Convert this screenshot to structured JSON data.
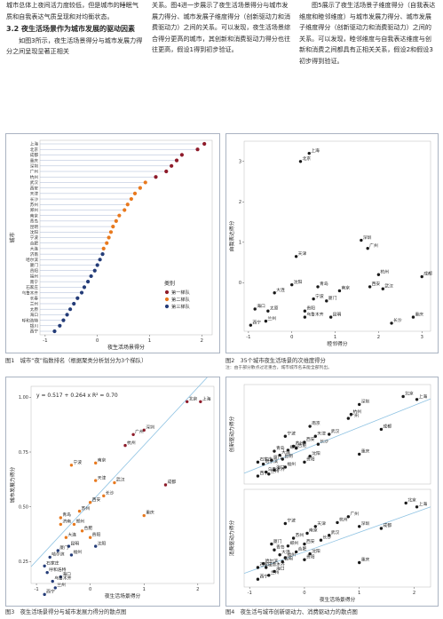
{
  "text": {
    "col1_p1": "城市总体上夜间活力度较低，但是城市的睡眠气质和自我表达气质呈现和对均衡状态。",
    "col1_heading": "3.2 夜生活场景作为城市发展的驱动因素",
    "col1_p2": "如图3所示，夜生活场景得分与城市发展力得分之间呈现显著正相关",
    "col2_p1": "关系。图4进一步展示了夜生活场景得分与城市发展力得分、城市发展子维度得分（创新驱动力和消费驱动力）之间的关系。可以发现，夜生活场景综合得分更高的城市，其创新和消费驱动力得分也往往更高，假设1得到初步验证。",
    "col3_p1": "图5展示了夜生活场景子维度得分（自我表达维度和睦邻维度）与城市发展力得分、城市发展子维度得分（创新驱动力和消费驱动力）之间的关系。可以发现，睦邻维度与自我表达维度与创新和消费之间都具有正相关关系，假设2和假设3初步得到验证。"
  },
  "figures": {
    "fig1": {
      "caption": "图1　城市“夜”指数排名（根据聚类分析划分为3个梯队）",
      "legend_title": "类别",
      "legend_items": [
        "第一梯队",
        "第二梯队",
        "第三梯队"
      ],
      "colors": [
        "#8e1b2a",
        "#e8791e",
        "#243c78"
      ],
      "chart_data": {
        "type": "scatter",
        "xlabel": "夜生活场景得分",
        "ylabel": "城市",
        "xticks": [
          "-1",
          "0",
          "1",
          "2"
        ],
        "xlim": [
          -1.1,
          2.2
        ],
        "cities": [
          "上海",
          "北京",
          "成都",
          "重庆",
          "深圳",
          "广州",
          "杭州",
          "武汉",
          "西安",
          "天津",
          "长沙",
          "苏州",
          "郑州",
          "南京",
          "青岛",
          "昆明",
          "沈阳",
          "宁波",
          "合肥",
          "大连",
          "济南",
          "哈尔滨",
          "厦门",
          "贵阳",
          "福州",
          "南宁",
          "石家庄",
          "乌鲁木齐",
          "长春",
          "兰州",
          "太原",
          "海口",
          "呼和浩特",
          "银川",
          "西宁"
        ],
        "scores": [
          2.05,
          1.92,
          1.62,
          1.52,
          1.42,
          1.32,
          1.12,
          0.92,
          0.82,
          0.72,
          0.65,
          0.58,
          0.52,
          0.42,
          0.36,
          0.3,
          0.26,
          0.22,
          0.18,
          0.12,
          0.1,
          0.05,
          0.0,
          -0.05,
          -0.12,
          -0.18,
          -0.25,
          -0.3,
          -0.38,
          -0.45,
          -0.52,
          -0.58,
          -0.65,
          -0.72,
          -0.82
        ],
        "tiers": [
          1,
          1,
          1,
          1,
          1,
          1,
          1,
          2,
          2,
          2,
          2,
          2,
          2,
          2,
          2,
          2,
          2,
          2,
          2,
          2,
          3,
          3,
          3,
          3,
          3,
          3,
          3,
          3,
          3,
          3,
          3,
          3,
          3,
          3,
          3
        ]
      }
    },
    "fig2": {
      "caption": "图2　35个城市夜生活场景的次维度得分",
      "note": "注：由于部分散点过近重合，城市城市名未能全部列出。",
      "chart_data": {
        "type": "scatter",
        "xlabel": "睦邻得分",
        "ylabel": "自我表达得分",
        "xticks": [
          "-1",
          "0",
          "1",
          "2",
          "3"
        ],
        "xlim": [
          -1.1,
          3.2
        ],
        "ylim": [
          -1.2,
          3.5
        ],
        "yticks": [
          "0",
          "1",
          "2",
          "3"
        ],
        "points": [
          {
            "label": "上海",
            "x": 0.4,
            "y": 3.2
          },
          {
            "label": "北京",
            "x": 0.2,
            "y": 3.0
          },
          {
            "label": "深圳",
            "x": 1.6,
            "y": 1.05
          },
          {
            "label": "广州",
            "x": 1.75,
            "y": 0.85
          },
          {
            "label": "天津",
            "x": 0.1,
            "y": 0.65
          },
          {
            "label": "成都",
            "x": 3.0,
            "y": 0.15
          },
          {
            "label": "杭州",
            "x": 2.0,
            "y": 0.2
          },
          {
            "label": "沈阳",
            "x": 0.0,
            "y": -0.05
          },
          {
            "label": "青岛",
            "x": 0.6,
            "y": -0.1
          },
          {
            "label": "南京",
            "x": 1.1,
            "y": -0.2
          },
          {
            "label": "西安",
            "x": 1.8,
            "y": -0.1
          },
          {
            "label": "武汉",
            "x": 2.1,
            "y": -0.15
          },
          {
            "label": "大连",
            "x": -0.4,
            "y": -0.25
          },
          {
            "label": "宁波",
            "x": 0.5,
            "y": -0.4
          },
          {
            "label": "厦门",
            "x": 0.8,
            "y": -0.45
          },
          {
            "label": "海口",
            "x": -0.85,
            "y": -0.65
          },
          {
            "label": "太原",
            "x": -0.55,
            "y": -0.7
          },
          {
            "label": "乌鲁木齐",
            "x": 0.3,
            "y": -0.85
          },
          {
            "label": "兰州",
            "x": -0.6,
            "y": -0.95
          },
          {
            "label": "西宁",
            "x": -0.95,
            "y": -1.05
          },
          {
            "label": "昆明",
            "x": 0.9,
            "y": -0.85
          },
          {
            "label": "贵阳",
            "x": 0.3,
            "y": -0.7
          },
          {
            "label": "长沙",
            "x": 2.3,
            "y": -1.0
          },
          {
            "label": "重庆",
            "x": 2.8,
            "y": -0.85
          }
        ]
      }
    },
    "fig3": {
      "caption": "图3　夜生活场景得分与城市发展力得分的散点图",
      "equation": "y = 0.517 + 0.264 x   R² = 0.70",
      "chart_data": {
        "type": "scatter",
        "xlabel": "夜生活场景得分",
        "ylabel": "城市发展力得分",
        "xticks": [
          "-1",
          "0",
          "1",
          "2"
        ],
        "yticks": [
          "0.25",
          "0.50",
          "0.75",
          "1.00"
        ],
        "xlim": [
          -1.1,
          2.3
        ],
        "ylim": [
          0.15,
          1.05
        ],
        "fit": {
          "intercept": 0.517,
          "slope": 0.264
        },
        "points": [
          {
            "label": "上海",
            "x": 2.05,
            "y": 0.98
          },
          {
            "label": "北京",
            "x": 1.8,
            "y": 0.98
          },
          {
            "label": "深圳",
            "x": 1.0,
            "y": 0.85
          },
          {
            "label": "广州",
            "x": 0.8,
            "y": 0.83
          },
          {
            "label": "杭州",
            "x": 0.65,
            "y": 0.78
          },
          {
            "label": "成都",
            "x": 1.4,
            "y": 0.6
          },
          {
            "label": "南京",
            "x": 0.1,
            "y": 0.7
          },
          {
            "label": "宁波",
            "x": -0.35,
            "y": 0.69
          },
          {
            "label": "武汉",
            "x": 0.45,
            "y": 0.61
          },
          {
            "label": "天津",
            "x": 0.1,
            "y": 0.62
          },
          {
            "label": "长沙",
            "x": 0.25,
            "y": 0.55
          },
          {
            "label": "西安",
            "x": 0.0,
            "y": 0.52
          },
          {
            "label": "重庆",
            "x": 1.0,
            "y": 0.46
          },
          {
            "label": "苏州",
            "x": -0.2,
            "y": 0.48
          },
          {
            "label": "青岛",
            "x": -0.55,
            "y": 0.45
          },
          {
            "label": "郑州",
            "x": -0.3,
            "y": 0.42
          },
          {
            "label": "济南",
            "x": -0.55,
            "y": 0.42
          },
          {
            "label": "合肥",
            "x": -0.15,
            "y": 0.39
          },
          {
            "label": "贵阳",
            "x": 0.0,
            "y": 0.36
          },
          {
            "label": "大连",
            "x": -0.45,
            "y": 0.36
          },
          {
            "label": "沈阳",
            "x": 0.1,
            "y": 0.32
          },
          {
            "label": "昆明",
            "x": -0.4,
            "y": 0.32
          },
          {
            "label": "厦门",
            "x": -0.6,
            "y": 0.3
          },
          {
            "label": "福州",
            "x": -0.35,
            "y": 0.28
          },
          {
            "label": "哈尔滨",
            "x": -0.75,
            "y": 0.27
          },
          {
            "label": "石家庄",
            "x": -0.85,
            "y": 0.23
          },
          {
            "label": "呼和浩特",
            "x": -0.8,
            "y": 0.2
          },
          {
            "label": "海口",
            "x": -0.55,
            "y": 0.18
          },
          {
            "label": "乌鲁木齐",
            "x": -0.7,
            "y": 0.16
          },
          {
            "label": "兰州",
            "x": -0.65,
            "y": 0.13
          },
          {
            "label": "西宁",
            "x": -0.85,
            "y": 0.1
          }
        ]
      }
    },
    "fig4": {
      "caption": "图4　夜生活与城市创新驱动力、消费驱动力的散点图",
      "chart_data": [
        {
          "type": "scatter",
          "ylabel": "创新驱动力得分",
          "xlim": [
            -1.1,
            2.3
          ],
          "ylim": [
            0.0,
            1.0
          ],
          "fit": {
            "intercept": 0.35,
            "slope": 0.22
          },
          "points": [
            {
              "label": "北京",
              "x": 1.8,
              "y": 0.88
            },
            {
              "label": "上海",
              "x": 2.05,
              "y": 0.85
            },
            {
              "label": "深圳",
              "x": 1.0,
              "y": 0.8
            },
            {
              "label": "广州",
              "x": 0.8,
              "y": 0.66
            },
            {
              "label": "杭州",
              "x": 0.85,
              "y": 0.7
            },
            {
              "label": "成都",
              "x": 1.4,
              "y": 0.55
            },
            {
              "label": "南京",
              "x": 0.1,
              "y": 0.58
            },
            {
              "label": "天津",
              "x": 0.2,
              "y": 0.48
            },
            {
              "label": "武汉",
              "x": 0.45,
              "y": 0.5
            },
            {
              "label": "宁波",
              "x": -0.35,
              "y": 0.48
            },
            {
              "label": "西安",
              "x": 0.0,
              "y": 0.42
            },
            {
              "label": "长沙",
              "x": 0.25,
              "y": 0.4
            },
            {
              "label": "苏州",
              "x": -0.2,
              "y": 0.38
            },
            {
              "label": "合肥",
              "x": -0.15,
              "y": 0.36
            },
            {
              "label": "郑州",
              "x": -0.3,
              "y": 0.34
            },
            {
              "label": "重庆",
              "x": 1.0,
              "y": 0.3
            },
            {
              "label": "青岛",
              "x": -0.55,
              "y": 0.33
            },
            {
              "label": "沈阳",
              "x": 0.1,
              "y": 0.28
            },
            {
              "label": "大连",
              "x": -0.45,
              "y": 0.29
            },
            {
              "label": "昆明",
              "x": -0.4,
              "y": 0.25
            },
            {
              "label": "厦门",
              "x": -0.6,
              "y": 0.24
            },
            {
              "label": "石家庄",
              "x": -0.85,
              "y": 0.22
            },
            {
              "label": "贵阳",
              "x": 0.0,
              "y": 0.22
            },
            {
              "label": "哈尔滨",
              "x": -0.75,
              "y": 0.2
            },
            {
              "label": "海口",
              "x": -0.55,
              "y": 0.14
            },
            {
              "label": "乌鲁木齐",
              "x": -0.7,
              "y": 0.12
            },
            {
              "label": "福州",
              "x": -0.35,
              "y": 0.17
            },
            {
              "label": "兰州",
              "x": -0.65,
              "y": 0.1
            },
            {
              "label": "西宁",
              "x": -0.85,
              "y": 0.08
            }
          ]
        },
        {
          "type": "scatter",
          "xlabel": "夜生活场景得分",
          "ylabel": "消费驱动力得分",
          "xticks": [
            "-1",
            "0",
            "1",
            "2"
          ],
          "xlim": [
            -1.1,
            2.3
          ],
          "ylim": [
            0.0,
            1.0
          ],
          "fit": {
            "intercept": 0.36,
            "slope": 0.2
          },
          "points": [
            {
              "label": "北京",
              "x": 1.85,
              "y": 0.86
            },
            {
              "label": "上海",
              "x": 2.05,
              "y": 0.82
            },
            {
              "label": "广州",
              "x": 0.8,
              "y": 0.72
            },
            {
              "label": "深圳",
              "x": 1.0,
              "y": 0.62
            },
            {
              "label": "杭州",
              "x": 0.6,
              "y": 0.66
            },
            {
              "label": "成都",
              "x": 1.4,
              "y": 0.6
            },
            {
              "label": "重庆",
              "x": 1.0,
              "y": 0.25
            },
            {
              "label": "天津",
              "x": 0.2,
              "y": 0.62
            },
            {
              "label": "宁波",
              "x": -0.35,
              "y": 0.65
            },
            {
              "label": "南京",
              "x": 0.05,
              "y": 0.55
            },
            {
              "label": "武汉",
              "x": 0.45,
              "y": 0.53
            },
            {
              "label": "长沙",
              "x": 0.3,
              "y": 0.48
            },
            {
              "label": "苏州",
              "x": -0.2,
              "y": 0.5
            },
            {
              "label": "西安",
              "x": 0.0,
              "y": 0.44
            },
            {
              "label": "郑州",
              "x": -0.3,
              "y": 0.42
            },
            {
              "label": "厦门",
              "x": -0.6,
              "y": 0.44
            },
            {
              "label": "合肥",
              "x": -0.15,
              "y": 0.36
            },
            {
              "label": "青岛",
              "x": -0.55,
              "y": 0.38
            },
            {
              "label": "大连",
              "x": -0.45,
              "y": 0.33
            },
            {
              "label": "福州",
              "x": -0.35,
              "y": 0.3
            },
            {
              "label": "沈阳",
              "x": 0.1,
              "y": 0.34
            },
            {
              "label": "贵阳",
              "x": 0.0,
              "y": 0.28
            },
            {
              "label": "昆明",
              "x": -0.4,
              "y": 0.26
            },
            {
              "label": "哈尔滨",
              "x": -0.75,
              "y": 0.24
            },
            {
              "label": "石家庄",
              "x": -0.85,
              "y": 0.2
            },
            {
              "label": "乌鲁木齐",
              "x": -0.7,
              "y": 0.2
            },
            {
              "label": "海口",
              "x": -0.55,
              "y": 0.16
            },
            {
              "label": "兰州",
              "x": -0.65,
              "y": 0.12
            },
            {
              "label": "西宁",
              "x": -0.85,
              "y": 0.08
            }
          ]
        }
      ]
    }
  }
}
